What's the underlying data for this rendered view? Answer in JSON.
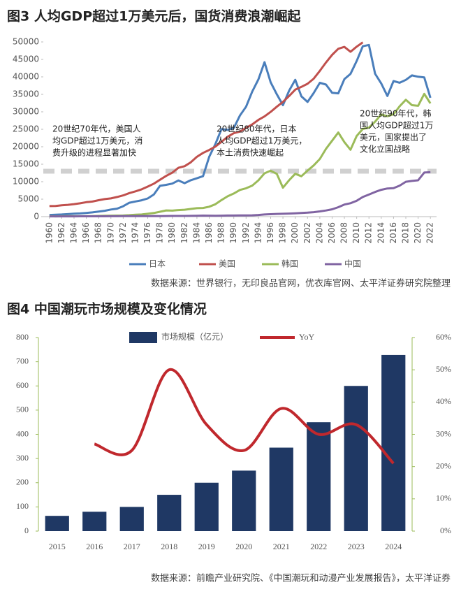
{
  "chart_data": [
    {
      "type": "line",
      "title": "图3  人均GDP超过1万美元后，国货消费浪潮崛起",
      "source": "数据来源：世界银行，无印良品官网，优衣库官网、太平洋证券研究院整理",
      "x": [
        1960,
        1961,
        1962,
        1963,
        1964,
        1965,
        1966,
        1967,
        1968,
        1969,
        1970,
        1971,
        1972,
        1973,
        1974,
        1975,
        1976,
        1977,
        1978,
        1979,
        1980,
        1981,
        1982,
        1983,
        1984,
        1985,
        1986,
        1987,
        1988,
        1989,
        1990,
        1991,
        1992,
        1993,
        1994,
        1995,
        1996,
        1997,
        1998,
        1999,
        2000,
        2001,
        2002,
        2003,
        2004,
        2005,
        2006,
        2007,
        2008,
        2009,
        2010,
        2011,
        2012,
        2013,
        2014,
        2015,
        2016,
        2017,
        2018,
        2019,
        2020,
        2021,
        2022
      ],
      "xlim": [
        1959,
        2023
      ],
      "xticks": [
        1960,
        1962,
        1964,
        1966,
        1968,
        1970,
        1972,
        1974,
        1976,
        1978,
        1980,
        1982,
        1984,
        1986,
        1988,
        1990,
        1992,
        1994,
        1996,
        1998,
        2000,
        2002,
        2004,
        2006,
        2008,
        2010,
        2012,
        2014,
        2016,
        2018,
        2020,
        2022
      ],
      "ylim": [
        0,
        50000
      ],
      "yticks": [
        0,
        5000,
        10000,
        15000,
        20000,
        25000,
        30000,
        35000,
        40000,
        45000,
        50000
      ],
      "reference_line": 13000,
      "series": [
        {
          "name": "日本",
          "color": "#4a7ebb",
          "values": [
            480,
            560,
            630,
            720,
            840,
            920,
            1060,
            1230,
            1450,
            1670,
            2040,
            2270,
            2970,
            3990,
            4350,
            4670,
            5200,
            6340,
            8820,
            9100,
            9460,
            10360,
            9580,
            10430,
            10980,
            11580,
            17110,
            20750,
            25060,
            24820,
            25360,
            28930,
            31460,
            35770,
            39270,
            44200,
            38440,
            35020,
            31900,
            36030,
            39170,
            34410,
            32820,
            35390,
            38300,
            37810,
            35430,
            35280,
            39340,
            40860,
            44510,
            48760,
            49150,
            40900,
            38110,
            34520,
            38790,
            38330,
            39150,
            40420,
            40040,
            39830,
            34020
          ]
        },
        {
          "name": "美国",
          "color": "#c0504d",
          "values": [
            3010,
            3060,
            3240,
            3370,
            3570,
            3830,
            4150,
            4330,
            4700,
            5030,
            5230,
            5610,
            6090,
            6740,
            7240,
            7820,
            8600,
            9450,
            10560,
            11670,
            12580,
            13980,
            14430,
            15540,
            17120,
            18240,
            19070,
            20040,
            21420,
            22860,
            23890,
            24340,
            25420,
            26390,
            27690,
            28690,
            29970,
            31460,
            32850,
            34510,
            36330,
            37130,
            38020,
            39490,
            41720,
            44120,
            46300,
            48050,
            48570,
            47190,
            48650,
            49880,
            null,
            null,
            null,
            null,
            null,
            null,
            null,
            null,
            null,
            null,
            null
          ]
        },
        {
          "name": "韩国",
          "color": "#9bbb59",
          "values": [
            160,
            90,
            110,
            140,
            120,
            110,
            130,
            160,
            200,
            250,
            280,
            300,
            320,
            410,
            560,
            620,
            830,
            1050,
            1400,
            1780,
            1710,
            1880,
            1990,
            2200,
            2420,
            2480,
            2840,
            3550,
            4750,
            5820,
            6620,
            7640,
            8130,
            8890,
            10390,
            12400,
            13140,
            12230,
            8290,
            10410,
            12260,
            11560,
            13170,
            14670,
            16500,
            19400,
            21740,
            24090,
            21350,
            19140,
            23080,
            25100,
            25460,
            27180,
            29250,
            28730,
            29290,
            31600,
            33450,
            31900,
            31720,
            35140,
            32420
          ]
        },
        {
          "name": "中国",
          "color": "#8064a2",
          "values": [
            90,
            76,
            70,
            74,
            85,
            98,
            104,
            97,
            91,
            100,
            113,
            119,
            132,
            157,
            160,
            178,
            165,
            185,
            156,
            184,
            195,
            197,
            203,
            225,
            251,
            294,
            282,
            252,
            284,
            311,
            318,
            333,
            366,
            377,
            473,
            610,
            709,
            782,
            829,
            873,
            959,
            1053,
            1149,
            1289,
            1509,
            1753,
            2099,
            2694,
            3468,
            3832,
            4550,
            5618,
            6317,
            7051,
            7679,
            8067,
            8148,
            8879,
            9977,
            10217,
            10409,
            12618,
            12720
          ]
        }
      ],
      "annotations": [
        [
          "20世纪70年代，美国人",
          "均GDP超过1万美元，消",
          "费升级的进程显著加快"
        ],
        [
          "20世纪80年代，日本",
          "人均GDP超过1万美元，",
          "本土消费快速崛起"
        ],
        [
          "20世纪90年代，韩",
          "国人均GDP超过1万",
          "美元，国家提出了",
          "文化立国战略"
        ]
      ]
    },
    {
      "type": "bar",
      "title": "图4  中国潮玩市场规模及变化情况",
      "source": "数据来源：前瞻产业研究院、《中国潮玩和动漫产业发展报告》，太平洋证券",
      "categories": [
        "2015",
        "2016",
        "2017",
        "2018",
        "2019",
        "2020",
        "2021",
        "2022",
        "2023",
        "2024"
      ],
      "ylim": [
        0,
        800
      ],
      "yticks": [
        0,
        100,
        200,
        300,
        400,
        500,
        600,
        700,
        800
      ],
      "y2lim": [
        0,
        60
      ],
      "y2ticks": [
        {
          "value": 0,
          "label": "0%"
        },
        {
          "value": 10,
          "label": "10%"
        },
        {
          "value": 20,
          "label": "20%"
        },
        {
          "value": 30,
          "label": "30%"
        },
        {
          "value": 40,
          "label": "40%"
        },
        {
          "value": 50,
          "label": "50%"
        },
        {
          "value": 60,
          "label": "60%"
        }
      ],
      "series": [
        {
          "name": "市场规模（亿元）",
          "color": "#1f3864",
          "values": [
            63,
            80,
            100,
            150,
            200,
            250,
            345,
            450,
            600,
            728
          ]
        },
        {
          "name": "YoY",
          "color": "#c0282d",
          "axis": "y2",
          "values": [
            null,
            27,
            25,
            50,
            33,
            25,
            38,
            30,
            33,
            21
          ]
        }
      ]
    }
  ]
}
